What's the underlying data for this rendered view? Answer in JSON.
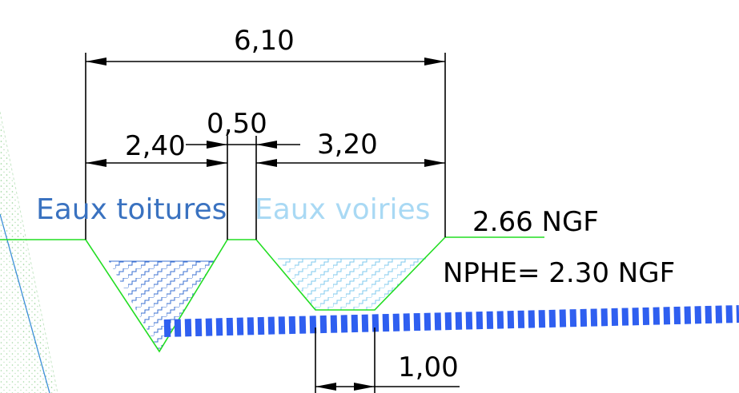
{
  "dimensions": {
    "total_width": "6,10",
    "left_width": "2,40",
    "middle_width": "0,50",
    "right_width": "3,20",
    "bottom_width": "1,00"
  },
  "labels": {
    "left_basin": "Eaux toitures",
    "right_basin": "Eaux voiries",
    "ground_level": "2.66 NGF",
    "water_level": "NPHE= 2.30 NGF"
  },
  "colors": {
    "ground_line": "#22dd22",
    "left_label": "#3a72c0",
    "right_label": "#a9d9f4",
    "left_hatch": "#3a6fd0",
    "right_hatch": "#7fc8ee",
    "pipe": "#2f5ff0",
    "embankment": "#9ad49a",
    "slope_line": "#3c8fd8"
  }
}
